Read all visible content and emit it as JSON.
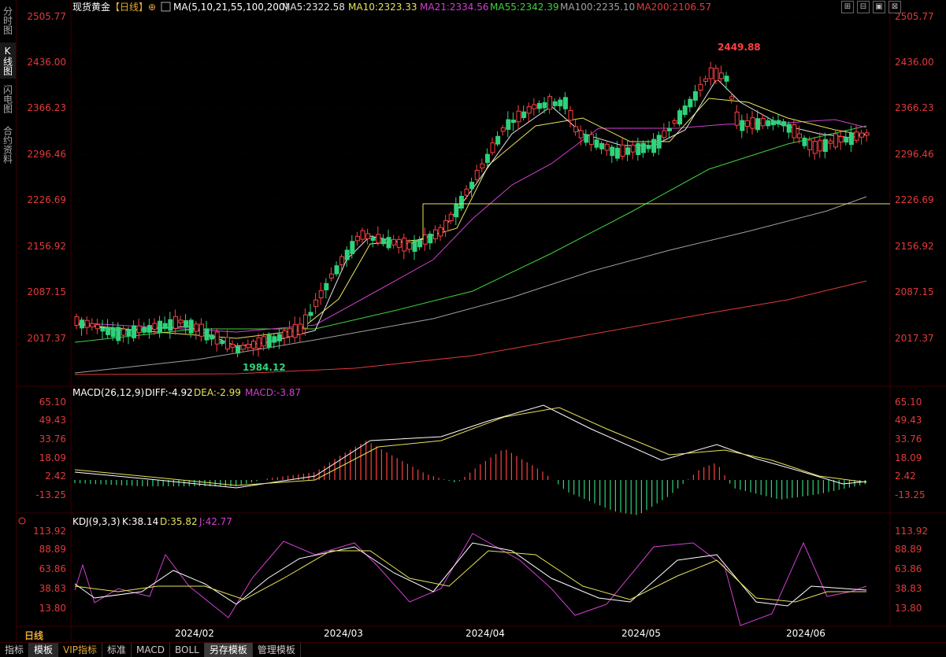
{
  "header": {
    "symbol": "现货黄金",
    "period_tag": "【日线】",
    "ma_spec": "MA(5,10,21,55,100,200)",
    "ma_values": [
      {
        "label": "MA5:2322.58",
        "color": "#e6e6e6"
      },
      {
        "label": "MA10:2323.33",
        "color": "#e8e35a"
      },
      {
        "label": "MA21:2334.56",
        "color": "#d23fd2"
      },
      {
        "label": "MA55:2342.39",
        "color": "#3fd23f"
      },
      {
        "label": "MA100:2235.10",
        "color": "#a0a0a0"
      },
      {
        "label": "MA200:2106.57",
        "color": "#e23a3a"
      }
    ]
  },
  "left_rail": [
    "分时图",
    "K线图",
    "闪电图",
    "合约资料"
  ],
  "toolbar_icons": [
    "⊞",
    "⊟",
    "▣",
    "⊠"
  ],
  "price_axis": [
    "2505.77",
    "2436.00",
    "2366.23",
    "2296.46",
    "2226.69",
    "2156.92",
    "2087.15",
    "2017.37"
  ],
  "annotations": {
    "high": "2449.88",
    "low": "1984.12"
  },
  "macd": {
    "label": "MACD(26,12,9)",
    "diff": "DIFF:-4.92",
    "dea": "DEA:-2.99",
    "macd": "MACD:-3.87",
    "axis": [
      "65.10",
      "49.43",
      "33.76",
      "18.09",
      "2.42",
      "-13.25"
    ]
  },
  "kdj": {
    "label": "KDJ(9,3,3)",
    "k": "K:38.14",
    "d": "D:35.82",
    "j": "J:42.77",
    "axis": [
      "113.92",
      "88.89",
      "63.86",
      "38.83",
      "13.80"
    ]
  },
  "time_axis": [
    "2024/02",
    "2024/03",
    "2024/04",
    "2024/05",
    "2024/06"
  ],
  "period_label": "日线",
  "bottom_tabs": [
    "指标",
    "模板",
    "VIP指标",
    "标准",
    "MACD",
    "BOLL",
    "另存模板",
    "管理模板"
  ],
  "colors": {
    "up": "#ff4040",
    "down": "#2ed37a",
    "grid": "#3a0000",
    "axis_text": "#e23a3a"
  }
}
